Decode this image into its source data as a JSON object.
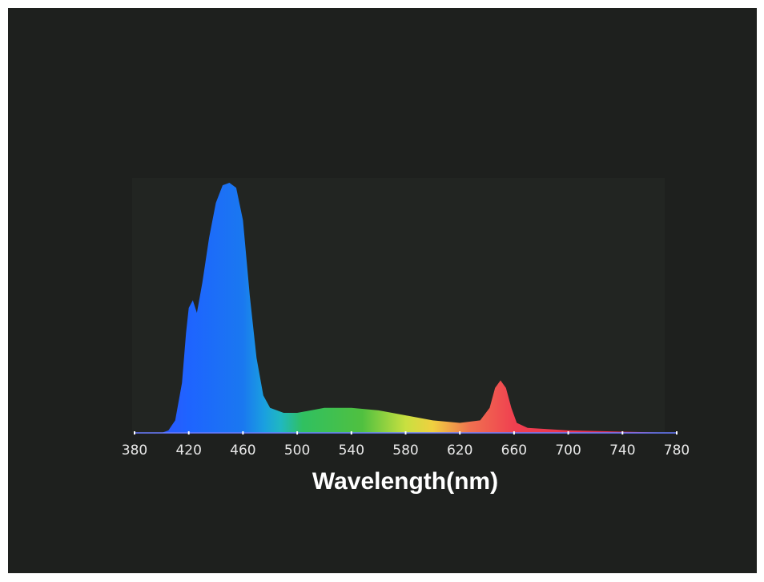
{
  "chart_data": {
    "type": "area",
    "x_label": "Wavelength(nm)",
    "x": [
      380,
      390,
      400,
      405,
      410,
      415,
      418,
      420,
      423,
      426,
      430,
      435,
      440,
      445,
      450,
      455,
      460,
      465,
      470,
      475,
      480,
      490,
      500,
      520,
      540,
      560,
      580,
      600,
      620,
      635,
      642,
      646,
      650,
      654,
      658,
      662,
      670,
      700,
      740,
      780
    ],
    "y": [
      0,
      0,
      0,
      1,
      5,
      20,
      40,
      50,
      53,
      48,
      60,
      78,
      92,
      99,
      100,
      98,
      85,
      55,
      30,
      15,
      10,
      8,
      8,
      10,
      10,
      9,
      7,
      5,
      4,
      5,
      10,
      18,
      21,
      18,
      10,
      4,
      2,
      1,
      0.5,
      0
    ],
    "xlim": [
      380,
      780
    ],
    "ylim": [
      0,
      100
    ],
    "xticks": [
      380,
      420,
      460,
      500,
      540,
      580,
      620,
      660,
      700,
      740,
      780
    ]
  }
}
